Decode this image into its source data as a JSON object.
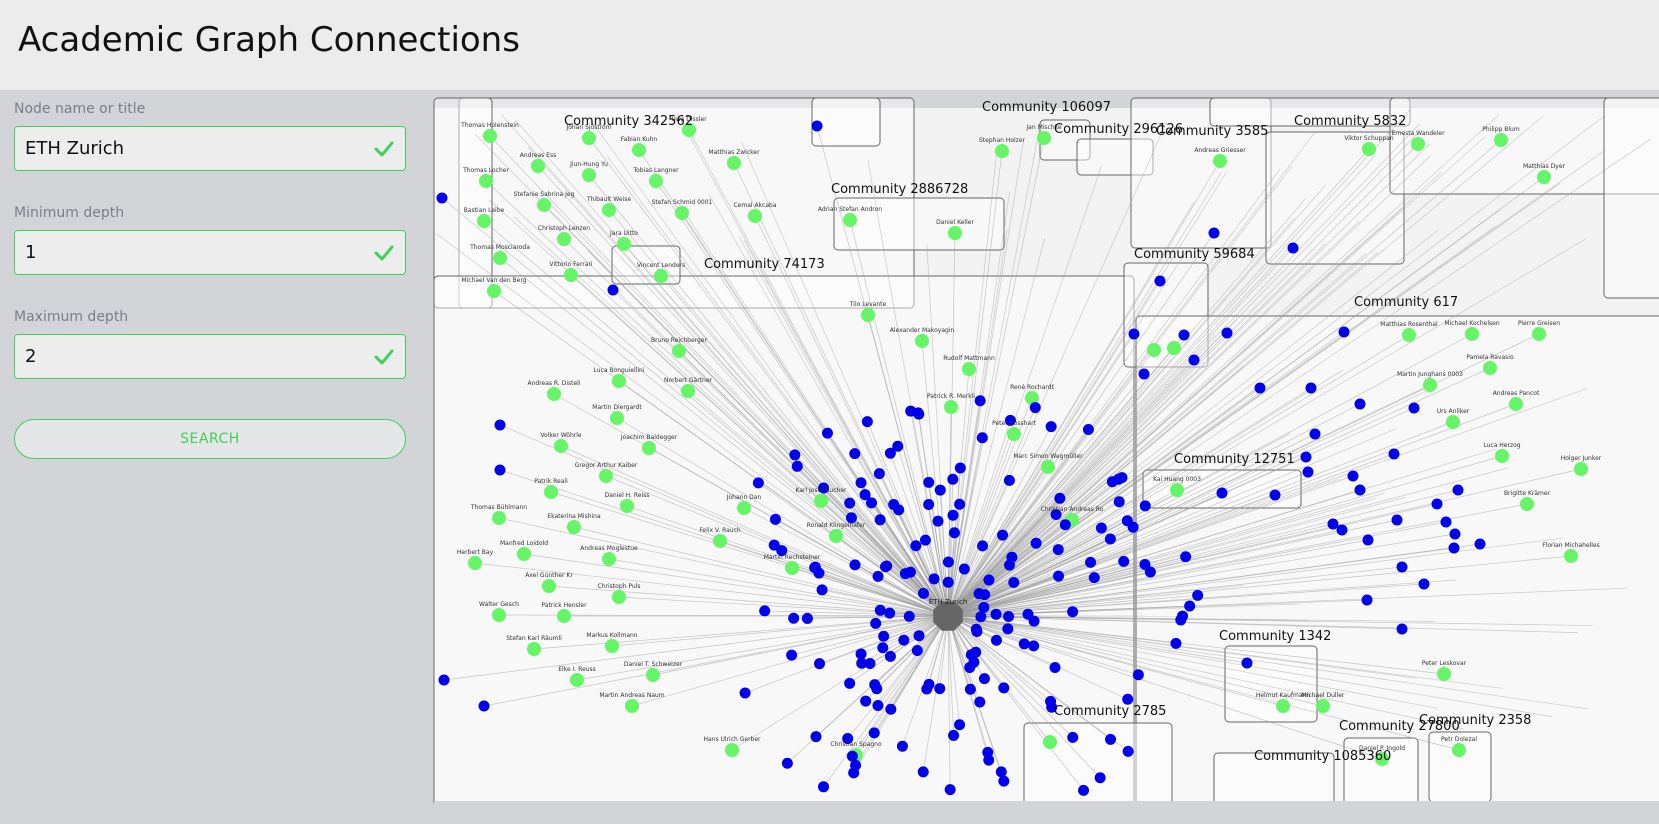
{
  "page": {
    "title": "Academic Graph Connections"
  },
  "form": {
    "name": {
      "label": "Node name or title",
      "value": "ETH Zurich"
    },
    "min_depth": {
      "label": "Minimum depth",
      "value": "1"
    },
    "max_depth": {
      "label": "Maximum depth",
      "value": "2"
    },
    "search_label": "SEARCH"
  },
  "colors": {
    "accent": "#3fd15a",
    "person_node": "#66f566",
    "paper_node": "#0000ee",
    "hub_node": "#666666"
  },
  "graph": {
    "hub_label": "ETH Zurich",
    "communities": [
      "Community 342562",
      "Community 106097",
      "Community 296126",
      "Community 3585",
      "Community 5832",
      "Community 2886728",
      "Community 74173",
      "Community 59684",
      "Community 617",
      "Community 12751",
      "Community 1342",
      "Community 2785",
      "Community 27800",
      "Community 2358",
      "Community 1085360"
    ],
    "people": [
      "Thomas Holenstein",
      "Andreas Ess",
      "Thomas Locher",
      "Stefanie Sabrina Jeg",
      "Bastian Leibe",
      "Thomas Mosciaroda",
      "Michael Van den Berg",
      "Johan Sjöström",
      "Fabian Kuhn",
      "Jiun-Hung Yu",
      "Tobias Langner",
      "Thibault Weise",
      "Stefan Schmid 0001",
      "Christoph Lenzen",
      "Jara Uitto",
      "Vittorio Ferrari",
      "Vincent Lenders",
      "Matthias Zwicker",
      "Cemal Akcaba",
      "Uwe Dissler",
      "Adrian Stefan Andron",
      "Daniel Keller",
      "Stephan Holzer",
      "Jan Mischke",
      "Andreas Griesser",
      "Viktor Schuppan",
      "Ernesta Wandeler",
      "Philipp Blum",
      "Matthias Dyer",
      "Tilo Levante",
      "Alexander Makoyagin",
      "Rudolf Mattmann",
      "Patrick R. Merkli",
      "René Rochardt",
      "Peter Bosshart",
      "Marc Simon Wegmüller",
      "Christian Andreas Ro",
      "Bruno Reichberger",
      "Luca Bonguiellini",
      "Norbert Gärtner",
      "Andreas R. Disteli",
      "Martin Diergardt",
      "Joachim Baldegger",
      "Volker Wöhrle",
      "Gregor Arthur Kaiber",
      "Patrik Reali",
      "Daniel H. Reiss",
      "Thomas Bühlmann",
      "Ekaterina Mishina",
      "Manfred Loidold",
      "Andreas Moglestue",
      "Herbert Bay",
      "Axel Günther Kr",
      "Christoph Puls",
      "Walter Gesch",
      "Patrick Hensler",
      "Stefan Karl Räumli",
      "Markus Kollmann",
      "Elke I. Reuss",
      "Daniel T. Schweizer",
      "Martin Andreas Naum",
      "Hans Ulrich Gerber",
      "Christian Spagno",
      "Karl Josef Bucher",
      "Felix V. Rauch",
      "Johann Dan",
      "Ronald Klingelhäfer",
      "Martin Rechsteiner",
      "Matthias Rosenthal",
      "Michael Kochelsen",
      "Pierre Greisen",
      "Pamela Ravasio",
      "Martin Junghans 0003",
      "Andreas Pancot",
      "Urs Anliker",
      "Luca Herzog",
      "Holger Junker",
      "Brigitte Krämer",
      "Florian Michahelles",
      "Kai Huang 0003",
      "Helmut Kaufmann",
      "Michael Duller",
      "Peter Leskovar",
      "Daniel P. Ingold",
      "Petr Dolezal"
    ]
  }
}
